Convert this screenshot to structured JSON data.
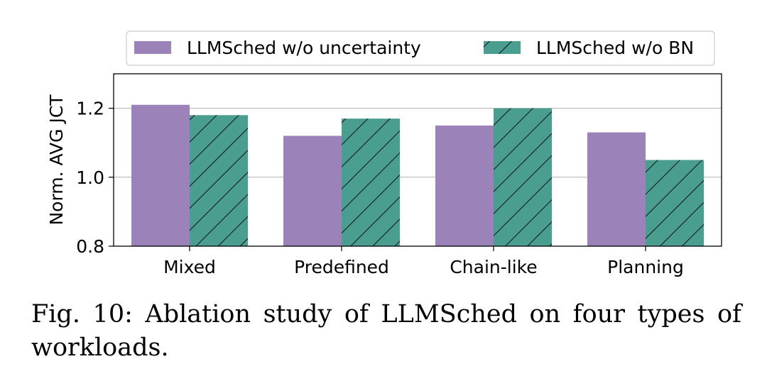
{
  "caption": "Fig. 10: Ablation study of LLMSched on four types of workloads.",
  "chart_data": {
    "type": "bar",
    "categories": [
      "Mixed",
      "Predefined",
      "Chain-like",
      "Planning"
    ],
    "series": [
      {
        "name": "LLMSched w/o uncertainty",
        "values": [
          1.21,
          1.12,
          1.15,
          1.13
        ],
        "color": "#9b82b8",
        "hatch": false
      },
      {
        "name": "LLMSched w/o BN",
        "values": [
          1.18,
          1.17,
          1.2,
          1.05
        ],
        "color": "#4a9e90",
        "hatch": true
      }
    ],
    "title": "",
    "xlabel": "",
    "ylabel": "Norm. AVG JCT",
    "ylim": [
      0.8,
      1.3
    ],
    "yticks": [
      0.8,
      1.0,
      1.2
    ],
    "grid": "y",
    "legend": "top"
  }
}
